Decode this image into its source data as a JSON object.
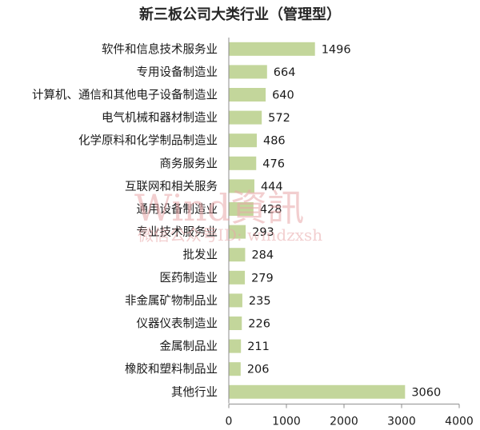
{
  "chart_data": {
    "type": "bar",
    "orientation": "horizontal",
    "title": "新三板公司大类行业（管理型）",
    "categories": [
      "软件和信息技术服务业",
      "专用设备制造业",
      "计算机、通信和其他电子设备制造业",
      "电气机械和器材制造业",
      "化学原料和化学制品制造业",
      "商务服务业",
      "互联网和相关服务",
      "通用设备制造业",
      "专业技术服务业",
      "批发业",
      "医药制造业",
      "非金属矿物制品业",
      "仪器仪表制造业",
      "金属制品业",
      "橡胶和塑料制品业",
      "其他行业"
    ],
    "values": [
      1496,
      664,
      640,
      572,
      486,
      476,
      444,
      428,
      293,
      284,
      279,
      235,
      226,
      211,
      206,
      3060
    ],
    "xlim": [
      0,
      4000
    ],
    "xticks": [
      "0",
      "1000",
      "2000",
      "3000",
      "4000"
    ],
    "bar_color": "#c3d69b",
    "grid": false,
    "legend": "none"
  },
  "watermark": {
    "main": "Wind資訊",
    "sub": "微信公众号ID: windzxsh"
  }
}
